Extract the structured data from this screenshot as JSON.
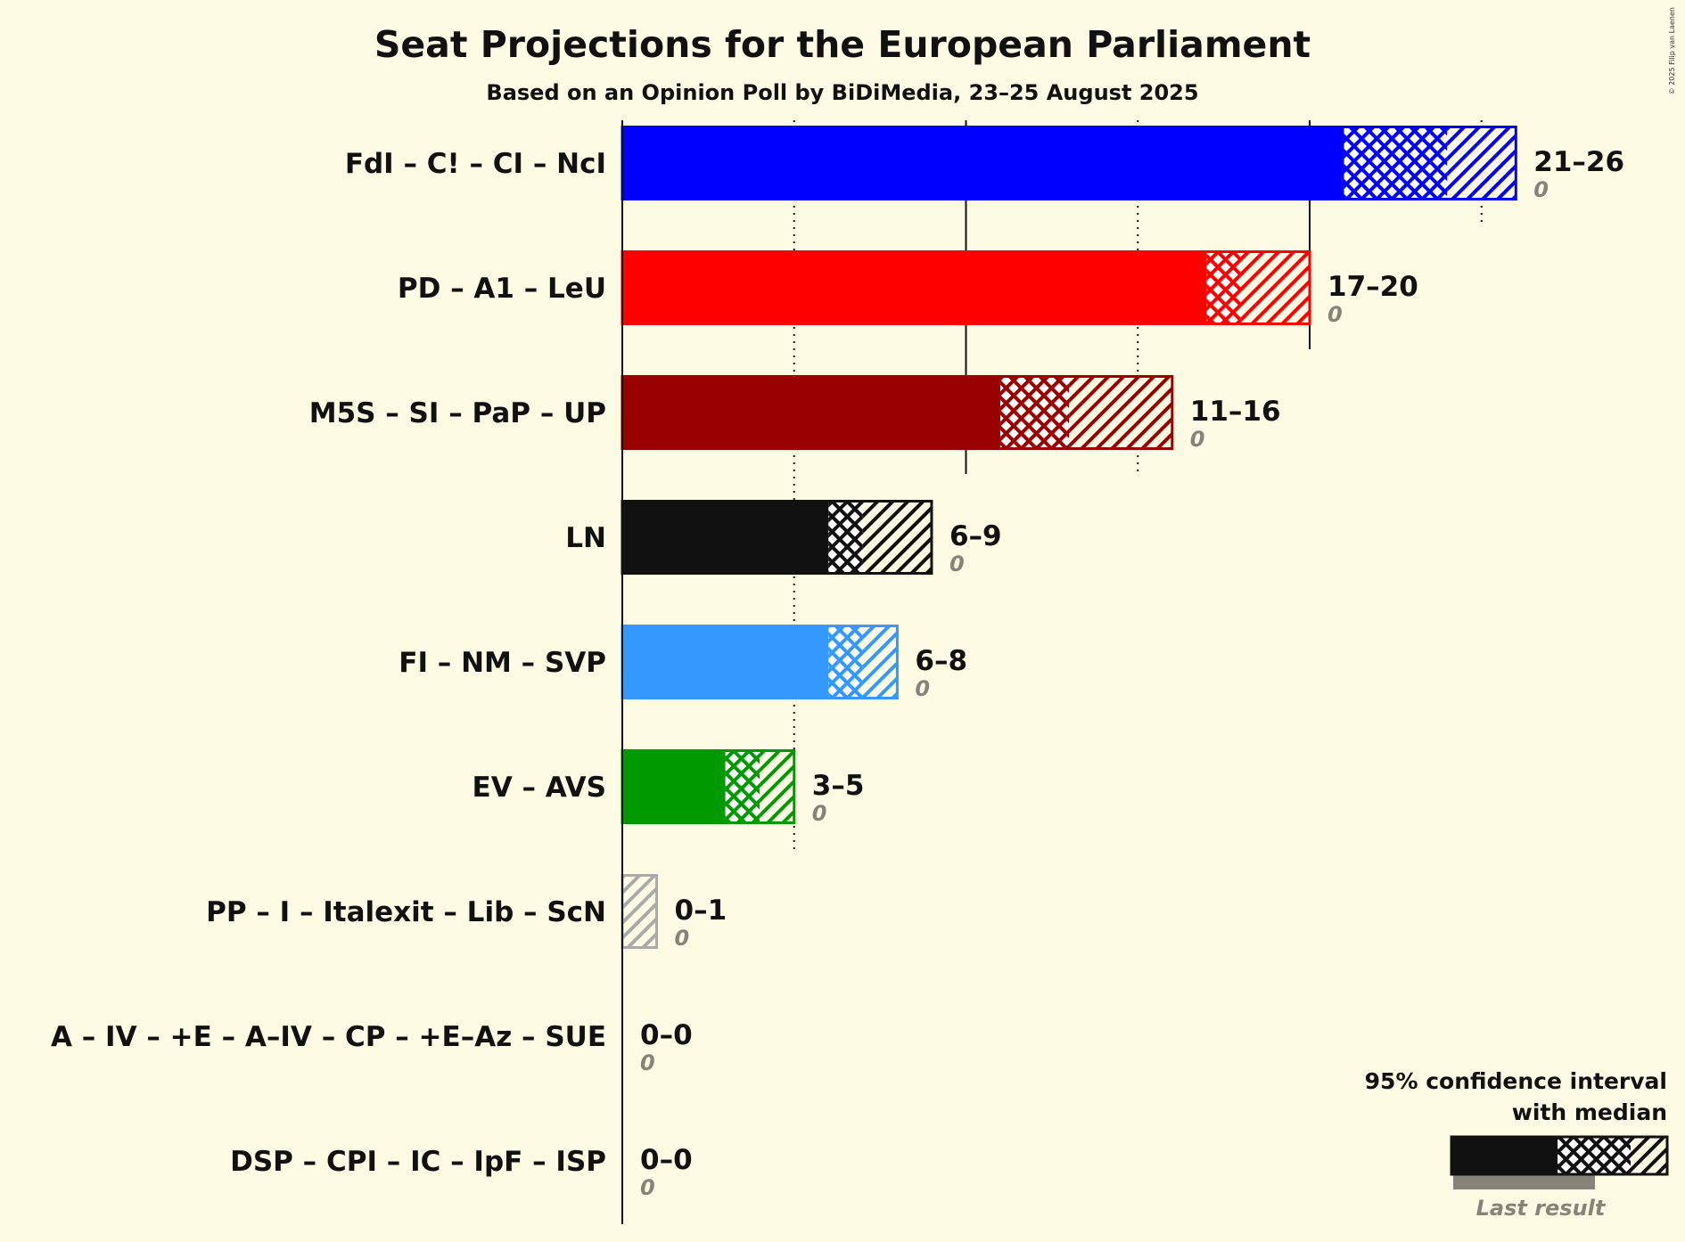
{
  "chart_data": {
    "type": "bar",
    "title": "Seat Projections for the European Parliament",
    "subtitle": "Based on an Opinion Poll by BiDiMedia, 23–25 August 2025",
    "copyright": "© 2025 Filip van Laenen",
    "xlim": [
      0,
      26
    ],
    "gridlines": {
      "solid": [
        10,
        20
      ],
      "dotted": [
        5,
        15,
        25
      ]
    },
    "series": [
      {
        "name": "FdI – C! – CI – NcI",
        "low": 21,
        "median": 24,
        "high": 26,
        "range_label": "21–26",
        "last_result": 0,
        "last_label": "0",
        "color": "#0000ff"
      },
      {
        "name": "PD – A1 – LeU",
        "low": 17,
        "median": 18,
        "high": 20,
        "range_label": "17–20",
        "last_result": 0,
        "last_label": "0",
        "color": "#ff0000"
      },
      {
        "name": "M5S – SI – PaP – UP",
        "low": 11,
        "median": 13,
        "high": 16,
        "range_label": "11–16",
        "last_result": 0,
        "last_label": "0",
        "color": "#990000"
      },
      {
        "name": "LN",
        "low": 6,
        "median": 7,
        "high": 9,
        "range_label": "6–9",
        "last_result": 0,
        "last_label": "0",
        "color": "#111111"
      },
      {
        "name": "FI – NM – SVP",
        "low": 6,
        "median": 7,
        "high": 8,
        "range_label": "6–8",
        "last_result": 0,
        "last_label": "0",
        "color": "#3399ff"
      },
      {
        "name": "EV – AVS",
        "low": 3,
        "median": 4,
        "high": 5,
        "range_label": "3–5",
        "last_result": 0,
        "last_label": "0",
        "color": "#009900"
      },
      {
        "name": "PP – I – Italexit – Lib – ScN",
        "low": 0,
        "median": 0,
        "high": 1,
        "range_label": "0–1",
        "last_result": 0,
        "last_label": "0",
        "color": "#aaaaaa"
      },
      {
        "name": "A – IV – +E – A–IV – CP – +E–Az – SUE",
        "low": 0,
        "median": 0,
        "high": 0,
        "range_label": "0–0",
        "last_result": 0,
        "last_label": "0",
        "color": "#111111"
      },
      {
        "name": "DSP – CPI – IC – IpF – ISP",
        "low": 0,
        "median": 0,
        "high": 0,
        "range_label": "0–0",
        "last_result": 0,
        "last_label": "0",
        "color": "#111111"
      }
    ],
    "legend": {
      "line1": "95% confidence interval",
      "line2": "with median",
      "last_result": "Last result",
      "placement": "bottom-right"
    }
  }
}
